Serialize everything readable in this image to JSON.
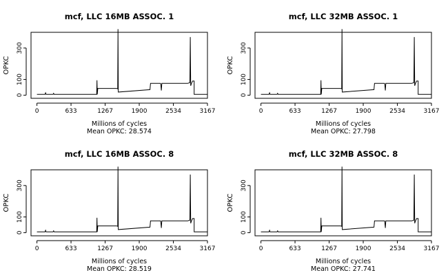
{
  "chart_data": [
    {
      "type": "line",
      "title": "mcf, LLC 16MB ASSOC. 1",
      "xlabel": "Millions of cycles",
      "ylabel": "OPKC",
      "mean_label": "Mean OPKC: 28.574",
      "xticks": [
        0,
        633,
        1267,
        1900,
        2534,
        3167
      ],
      "yticks": [
        0,
        100,
        300
      ],
      "xlim": [
        -110,
        3167
      ],
      "ylim": [
        -20,
        400
      ],
      "grid": false,
      "x": [
        0,
        100,
        150,
        160,
        170,
        300,
        310,
        320,
        1000,
        1110,
        1115,
        1120,
        1500,
        1505,
        1510,
        2100,
        2300,
        2310,
        2320,
        2550,
        2800,
        2840,
        2848,
        2856,
        2870,
        2890,
        2920,
        2920,
        3167
      ],
      "y": [
        5,
        5,
        5,
        15,
        5,
        5,
        12,
        5,
        5,
        5,
        95,
        5,
        40,
        420,
        20,
        35,
        70,
        30,
        75,
        75,
        75,
        80,
        370,
        60,
        75,
        90,
        90,
        5,
        5
      ]
    },
    {
      "type": "line",
      "title": "mcf, LLC 32MB ASSOC. 1",
      "xlabel": "Millions of cycles",
      "ylabel": "OPKC",
      "mean_label": "Mean OPKC: 27.798",
      "xticks": [
        0,
        633,
        1267,
        1900,
        2534,
        3167
      ],
      "yticks": [
        0,
        100,
        300
      ],
      "xlim": [
        -110,
        3167
      ],
      "ylim": [
        -20,
        400
      ],
      "grid": false,
      "x": [
        0,
        100,
        150,
        160,
        170,
        300,
        310,
        320,
        1000,
        1110,
        1115,
        1120,
        1500,
        1505,
        1510,
        2100,
        2300,
        2310,
        2320,
        2550,
        2800,
        2840,
        2848,
        2856,
        2870,
        2890,
        2920,
        2920,
        3167
      ],
      "y": [
        5,
        5,
        5,
        15,
        5,
        5,
        12,
        5,
        5,
        5,
        95,
        5,
        40,
        420,
        20,
        35,
        70,
        30,
        75,
        75,
        75,
        80,
        370,
        60,
        75,
        90,
        90,
        5,
        5
      ]
    },
    {
      "type": "line",
      "title": "mcf, LLC 16MB ASSOC. 8",
      "xlabel": "Millions of cycles",
      "ylabel": "OPKC",
      "mean_label": "Mean OPKC: 28.519",
      "xticks": [
        0,
        633,
        1267,
        1900,
        2534,
        3167
      ],
      "yticks": [
        0,
        100,
        300
      ],
      "xlim": [
        -110,
        3167
      ],
      "ylim": [
        -20,
        400
      ],
      "grid": false,
      "x": [
        0,
        100,
        150,
        160,
        170,
        300,
        310,
        320,
        1000,
        1110,
        1115,
        1120,
        1500,
        1505,
        1510,
        2100,
        2300,
        2310,
        2320,
        2550,
        2800,
        2840,
        2848,
        2856,
        2870,
        2890,
        2920,
        2920,
        3167
      ],
      "y": [
        5,
        5,
        5,
        15,
        5,
        5,
        12,
        5,
        5,
        5,
        95,
        5,
        40,
        420,
        20,
        35,
        70,
        30,
        75,
        75,
        75,
        80,
        370,
        60,
        75,
        90,
        90,
        5,
        5
      ]
    },
    {
      "type": "line",
      "title": "mcf, LLC 32MB ASSOC. 8",
      "xlabel": "Millions of cycles",
      "ylabel": "OPKC",
      "mean_label": "Mean OPKC: 27.741",
      "xticks": [
        0,
        633,
        1267,
        1900,
        2534,
        3167
      ],
      "yticks": [
        0,
        100,
        300
      ],
      "xlim": [
        -110,
        3167
      ],
      "ylim": [
        -20,
        400
      ],
      "grid": false,
      "x": [
        0,
        100,
        150,
        160,
        170,
        300,
        310,
        320,
        1000,
        1110,
        1115,
        1120,
        1500,
        1505,
        1510,
        2100,
        2300,
        2310,
        2320,
        2550,
        2800,
        2840,
        2848,
        2856,
        2870,
        2890,
        2920,
        2920,
        3167
      ],
      "y": [
        5,
        5,
        5,
        15,
        5,
        5,
        12,
        5,
        5,
        5,
        95,
        5,
        40,
        420,
        20,
        35,
        70,
        30,
        75,
        75,
        75,
        80,
        370,
        60,
        75,
        90,
        90,
        5,
        5
      ]
    }
  ]
}
